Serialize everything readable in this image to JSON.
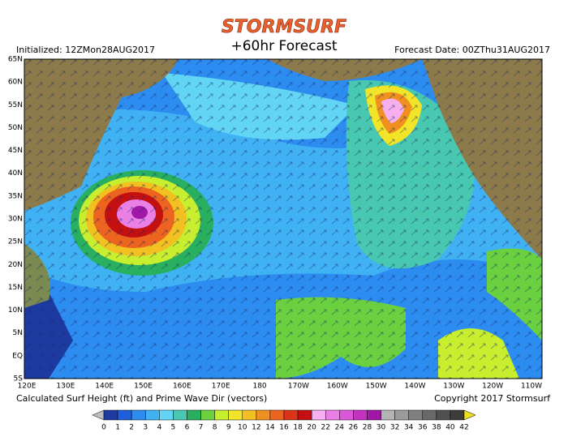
{
  "header": {
    "logo": "STORMSURF",
    "title": "+60hr Forecast",
    "initialized": "Initialized: 12ZMon28AUG2017",
    "forecast_date": "Forecast Date: 00ZThu31AUG2017"
  },
  "map": {
    "lat_labels": [
      "65N",
      "60N",
      "55N",
      "50N",
      "45N",
      "40N",
      "35N",
      "30N",
      "25N",
      "20N",
      "15N",
      "10N",
      "5N",
      "EQ",
      "5S"
    ],
    "lon_labels": [
      "120E",
      "130E",
      "140E",
      "150E",
      "160E",
      "170E",
      "180",
      "170W",
      "160W",
      "150W",
      "140W",
      "130W",
      "120W",
      "110W"
    ]
  },
  "footer": {
    "caption": "Calculated Surf Height (ft) and Prime Wave Dir (vectors)",
    "copyright": "Copyright 2017 Stormsurf"
  },
  "legend": {
    "labels": [
      0,
      1,
      2,
      3,
      4,
      5,
      6,
      7,
      8,
      9,
      10,
      12,
      14,
      16,
      18,
      20,
      22,
      24,
      26,
      28,
      30,
      32,
      34,
      36,
      38,
      40,
      42
    ],
    "colors": [
      "#bdbdbd",
      "#1c3aa0",
      "#1f5ed8",
      "#2c8cf0",
      "#40b2f4",
      "#62d4f4",
      "#48c8b0",
      "#28b060",
      "#6ad040",
      "#c8ee30",
      "#f2e428",
      "#f2c020",
      "#f09020",
      "#ec6420",
      "#dc3418",
      "#c41010",
      "#f6b0f0",
      "#ea80e6",
      "#dc58d8",
      "#c430c0",
      "#a018a8",
      "#b4b4b4",
      "#9a9a9a",
      "#808080",
      "#686868",
      "#505050",
      "#3c3c3c",
      "#e8e020"
    ]
  }
}
